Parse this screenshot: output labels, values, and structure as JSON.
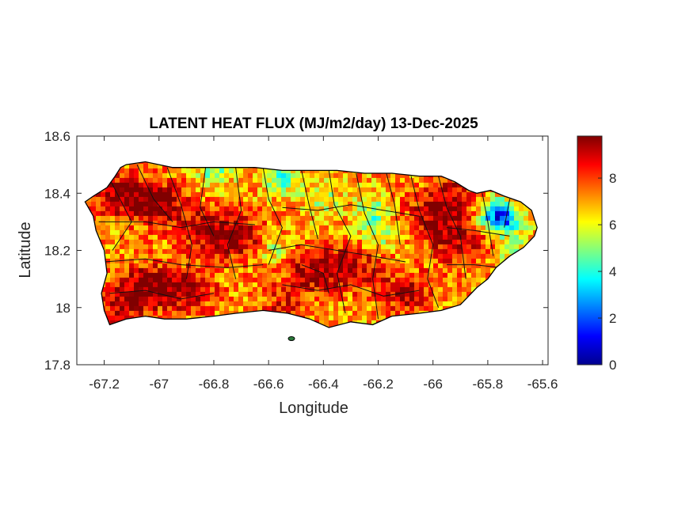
{
  "chart_data": {
    "type": "heatmap",
    "title": "LATENT HEAT FLUX (MJ/m2/day) 13-Dec-2025",
    "xlabel": "Longitude",
    "ylabel": "Latitude",
    "xlim": [
      -67.3,
      -65.58
    ],
    "ylim": [
      17.8,
      18.6
    ],
    "xticks": [
      -67.2,
      -67,
      -66.8,
      -66.6,
      -66.4,
      -66.2,
      -66,
      -65.8,
      -65.6
    ],
    "xtick_labels": [
      "-67.2",
      "-67",
      "-66.8",
      "-66.6",
      "-66.4",
      "-66.2",
      "-66",
      "-65.8",
      "-65.6"
    ],
    "yticks": [
      17.8,
      18,
      18.2,
      18.4,
      18.6
    ],
    "ytick_labels": [
      "17.8",
      "18",
      "18.2",
      "18.4",
      "18.6"
    ],
    "colormap": "jet",
    "colorbar": {
      "min": 0,
      "max": 9.8,
      "ticks": [
        0,
        2,
        4,
        6,
        8
      ],
      "tick_labels": [
        "0",
        "2",
        "4",
        "6",
        "8"
      ],
      "colors": [
        "#00008f",
        "#0000ff",
        "#00ffff",
        "#ffff00",
        "#ff0000",
        "#800000"
      ]
    },
    "grid": false,
    "region_outline_lonlat": [
      [
        -67.27,
        18.37
      ],
      [
        -67.24,
        18.39
      ],
      [
        -67.19,
        18.42
      ],
      [
        -67.16,
        18.46
      ],
      [
        -67.14,
        18.49
      ],
      [
        -67.12,
        18.5
      ],
      [
        -67.05,
        18.51
      ],
      [
        -66.95,
        18.49
      ],
      [
        -66.85,
        18.49
      ],
      [
        -66.75,
        18.49
      ],
      [
        -66.65,
        18.49
      ],
      [
        -66.55,
        18.48
      ],
      [
        -66.45,
        18.48
      ],
      [
        -66.35,
        18.48
      ],
      [
        -66.25,
        18.47
      ],
      [
        -66.15,
        18.47
      ],
      [
        -66.05,
        18.46
      ],
      [
        -65.97,
        18.46
      ],
      [
        -65.92,
        18.44
      ],
      [
        -65.87,
        18.41
      ],
      [
        -65.84,
        18.4
      ],
      [
        -65.79,
        18.41
      ],
      [
        -65.74,
        18.39
      ],
      [
        -65.68,
        18.37
      ],
      [
        -65.64,
        18.34
      ],
      [
        -65.62,
        18.28
      ],
      [
        -65.63,
        18.25
      ],
      [
        -65.67,
        18.21
      ],
      [
        -65.72,
        18.18
      ],
      [
        -65.77,
        18.14
      ],
      [
        -65.8,
        18.1
      ],
      [
        -65.84,
        18.07
      ],
      [
        -65.9,
        18.01
      ],
      [
        -65.97,
        17.99
      ],
      [
        -66.05,
        17.98
      ],
      [
        -66.15,
        17.97
      ],
      [
        -66.22,
        17.94
      ],
      [
        -66.3,
        17.95
      ],
      [
        -66.38,
        17.93
      ],
      [
        -66.45,
        17.96
      ],
      [
        -66.53,
        17.98
      ],
      [
        -66.62,
        17.99
      ],
      [
        -66.72,
        17.98
      ],
      [
        -66.8,
        17.97
      ],
      [
        -66.9,
        17.96
      ],
      [
        -66.98,
        17.96
      ],
      [
        -67.05,
        17.97
      ],
      [
        -67.12,
        17.96
      ],
      [
        -67.18,
        17.94
      ],
      [
        -67.2,
        17.99
      ],
      [
        -67.21,
        18.05
      ],
      [
        -67.19,
        18.12
      ],
      [
        -67.2,
        18.2
      ],
      [
        -67.23,
        18.27
      ],
      [
        -67.24,
        18.32
      ],
      [
        -67.27,
        18.37
      ]
    ],
    "value_field": {
      "base": 7.0,
      "hotspots": [
        {
          "lon": -67.15,
          "lat": 18.4,
          "value": 9.5
        },
        {
          "lon": -67.0,
          "lat": 18.36,
          "value": 9.6
        },
        {
          "lon": -66.82,
          "lat": 18.27,
          "value": 9.2
        },
        {
          "lon": -66.7,
          "lat": 18.24,
          "value": 9.0
        },
        {
          "lon": -67.05,
          "lat": 18.08,
          "value": 9.4
        },
        {
          "lon": -66.9,
          "lat": 18.06,
          "value": 9.3
        },
        {
          "lon": -66.45,
          "lat": 18.13,
          "value": 9.3
        },
        {
          "lon": -66.3,
          "lat": 18.14,
          "value": 9.0
        },
        {
          "lon": -66.1,
          "lat": 18.05,
          "value": 9.0
        },
        {
          "lon": -65.9,
          "lat": 18.22,
          "value": 9.2
        },
        {
          "lon": -65.92,
          "lat": 18.38,
          "value": 9.0
        },
        {
          "lon": -66.0,
          "lat": 18.32,
          "value": 8.8
        },
        {
          "lon": -67.15,
          "lat": 18.0,
          "value": 8.8
        },
        {
          "lon": -66.55,
          "lat": 17.99,
          "value": 8.5
        }
      ],
      "coolspots": [
        {
          "lon": -65.78,
          "lat": 18.33,
          "value": 3.0
        },
        {
          "lon": -65.73,
          "lat": 18.3,
          "value": 3.8
        },
        {
          "lon": -66.55,
          "lat": 18.45,
          "value": 4.5
        },
        {
          "lon": -66.8,
          "lat": 18.47,
          "value": 5.0
        },
        {
          "lon": -66.22,
          "lat": 18.33,
          "value": 4.8
        },
        {
          "lon": -65.7,
          "lat": 18.17,
          "value": 5.0
        },
        {
          "lon": -66.58,
          "lat": 18.2,
          "value": 5.2
        },
        {
          "lon": -66.2,
          "lat": 18.25,
          "value": 5.5
        },
        {
          "lon": -66.4,
          "lat": 18.38,
          "value": 5.5
        }
      ]
    },
    "municipio_boundaries_lonlat": [
      [
        [
          -67.18,
          18.45
        ],
        [
          -67.1,
          18.3
        ],
        [
          -67.17,
          18.2
        ]
      ],
      [
        [
          -67.08,
          18.5
        ],
        [
          -67.02,
          18.38
        ],
        [
          -66.95,
          18.3
        ]
      ],
      [
        [
          -66.97,
          18.49
        ],
        [
          -66.92,
          18.36
        ],
        [
          -66.88,
          18.22
        ],
        [
          -66.9,
          18.1
        ]
      ],
      [
        [
          -66.83,
          18.49
        ],
        [
          -66.85,
          18.35
        ],
        [
          -66.8,
          18.25
        ]
      ],
      [
        [
          -66.72,
          18.49
        ],
        [
          -66.7,
          18.34
        ],
        [
          -66.75,
          18.22
        ],
        [
          -66.72,
          18.1
        ]
      ],
      [
        [
          -66.62,
          18.49
        ],
        [
          -66.6,
          18.38
        ],
        [
          -66.55,
          18.28
        ],
        [
          -66.6,
          18.15
        ]
      ],
      [
        [
          -66.48,
          18.48
        ],
        [
          -66.45,
          18.35
        ],
        [
          -66.42,
          18.24
        ]
      ],
      [
        [
          -66.38,
          18.48
        ],
        [
          -66.36,
          18.36
        ],
        [
          -66.3,
          18.25
        ],
        [
          -66.35,
          18.12
        ],
        [
          -66.32,
          17.98
        ]
      ],
      [
        [
          -66.28,
          18.47
        ],
        [
          -66.25,
          18.33
        ],
        [
          -66.2,
          18.22
        ],
        [
          -66.22,
          18.1
        ],
        [
          -66.2,
          17.96
        ]
      ],
      [
        [
          -66.17,
          18.47
        ],
        [
          -66.14,
          18.36
        ],
        [
          -66.12,
          18.22
        ]
      ],
      [
        [
          -66.08,
          18.46
        ],
        [
          -66.05,
          18.34
        ],
        [
          -66.0,
          18.22
        ],
        [
          -66.02,
          18.1
        ],
        [
          -65.98,
          18.0
        ]
      ],
      [
        [
          -65.98,
          18.46
        ],
        [
          -65.95,
          18.35
        ],
        [
          -65.9,
          18.25
        ],
        [
          -65.88,
          18.1
        ]
      ],
      [
        [
          -65.82,
          18.4
        ],
        [
          -65.8,
          18.3
        ],
        [
          -65.78,
          18.18
        ]
      ],
      [
        [
          -65.72,
          18.38
        ],
        [
          -65.74,
          18.28
        ]
      ],
      [
        [
          -67.22,
          18.3
        ],
        [
          -67.05,
          18.3
        ],
        [
          -66.92,
          18.28
        ],
        [
          -66.8,
          18.3
        ],
        [
          -66.65,
          18.29
        ]
      ],
      [
        [
          -67.2,
          18.16
        ],
        [
          -67.05,
          18.17
        ],
        [
          -66.92,
          18.15
        ],
        [
          -66.75,
          18.14
        ],
        [
          -66.62,
          18.15
        ]
      ],
      [
        [
          -67.18,
          18.05
        ],
        [
          -67.05,
          18.06
        ],
        [
          -66.92,
          18.03
        ],
        [
          -66.8,
          18.05
        ]
      ],
      [
        [
          -66.6,
          18.2
        ],
        [
          -66.48,
          18.22
        ],
        [
          -66.35,
          18.2
        ],
        [
          -66.22,
          18.18
        ],
        [
          -66.1,
          18.16
        ]
      ],
      [
        [
          -66.55,
          18.35
        ],
        [
          -66.42,
          18.34
        ],
        [
          -66.3,
          18.36
        ],
        [
          -66.18,
          18.34
        ],
        [
          -66.05,
          18.32
        ]
      ],
      [
        [
          -66.55,
          18.08
        ],
        [
          -66.42,
          18.06
        ],
        [
          -66.3,
          18.08
        ],
        [
          -66.18,
          18.04
        ],
        [
          -66.05,
          18.06
        ]
      ],
      [
        [
          -65.95,
          18.15
        ],
        [
          -65.85,
          18.15
        ],
        [
          -65.75,
          18.14
        ]
      ],
      [
        [
          -65.95,
          18.28
        ],
        [
          -65.85,
          18.27
        ],
        [
          -65.72,
          18.25
        ]
      ],
      [
        [
          -66.48,
          18.15
        ],
        [
          -66.4,
          18.12
        ],
        [
          -66.38,
          18.05
        ]
      ]
    ]
  }
}
